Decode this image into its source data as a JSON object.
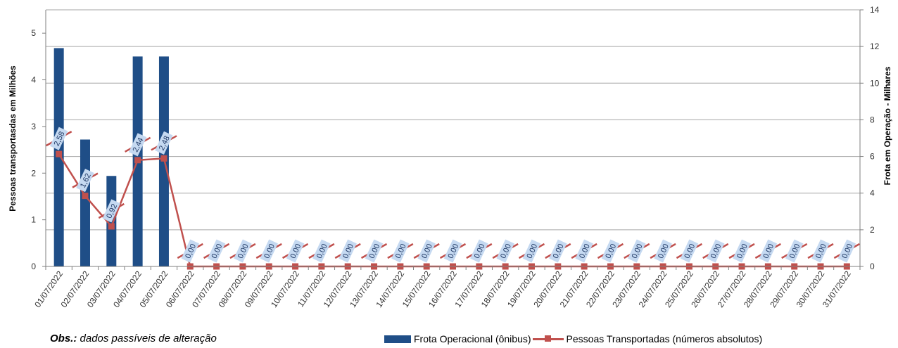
{
  "chart_data": {
    "type": "bar",
    "categories": [
      "01/07/2022",
      "02/07/2022",
      "03/07/2022",
      "04/07/2022",
      "05/07/2022",
      "06/07/2022",
      "07/07/2022",
      "08/07/2022",
      "09/07/2022",
      "10/07/2022",
      "11/07/2022",
      "12/07/2022",
      "13/07/2022",
      "14/07/2022",
      "15/07/2022",
      "16/07/2022",
      "17/07/2022",
      "18/07/2022",
      "19/07/2022",
      "20/07/2022",
      "21/07/2022",
      "22/07/2022",
      "23/07/2022",
      "24/07/2022",
      "25/07/2022",
      "26/07/2022",
      "27/07/2022",
      "28/07/2022",
      "29/07/2022",
      "30/07/2022",
      "31/07/2022"
    ],
    "series": [
      {
        "name": "Frota Operacional (ônibus)",
        "type": "bar",
        "axis": "left",
        "color": "#1f4e87",
        "values": [
          4.68,
          2.72,
          1.94,
          4.5,
          4.5,
          0,
          0,
          0,
          0,
          0,
          0,
          0,
          0,
          0,
          0,
          0,
          0,
          0,
          0,
          0,
          0,
          0,
          0,
          0,
          0,
          0,
          0,
          0,
          0,
          0,
          0
        ]
      },
      {
        "name": "Pessoas Transportadas (números absolutos)",
        "type": "line",
        "axis": "left",
        "color": "#c0504d",
        "values": [
          2.58,
          1.62,
          0.92,
          2.44,
          2.48,
          0,
          0,
          0,
          0,
          0,
          0,
          0,
          0,
          0,
          0,
          0,
          0,
          0,
          0,
          0,
          0,
          0,
          0,
          0,
          0,
          0,
          0,
          0,
          0,
          0,
          0
        ],
        "labels": [
          "2,58",
          "1,62",
          "0,92",
          "2,44",
          "2,48",
          "0,00",
          "0,00",
          "0,00",
          "0,00",
          "0,00",
          "0,00",
          "0,00",
          "0,00",
          "0,00",
          "0,00",
          "0,00",
          "0,00",
          "0,00",
          "0,00",
          "0,00",
          "0,00",
          "0,00",
          "0,00",
          "0,00",
          "0,00",
          "0,00",
          "0,00",
          "0,00",
          "0,00",
          "0,00",
          "0,00"
        ]
      }
    ],
    "ylabel": "Pessoas transportasdas em Milhões",
    "y2label": "Frota  em Operação - Milhares",
    "ylim": [
      0,
      5.5
    ],
    "y2lim": [
      0,
      14
    ],
    "yticks": [
      "0",
      "1",
      "2",
      "3",
      "4",
      "5"
    ],
    "y2ticks": [
      "0",
      "2",
      "4",
      "6",
      "8",
      "10",
      "12",
      "14"
    ],
    "grid": true,
    "legend_position": "bottom-right"
  },
  "footer": {
    "obs_label": "Obs.:",
    "obs_text": " dados passíveis de alteração"
  },
  "colors": {
    "label_box_fill": "#c5d9f1"
  }
}
